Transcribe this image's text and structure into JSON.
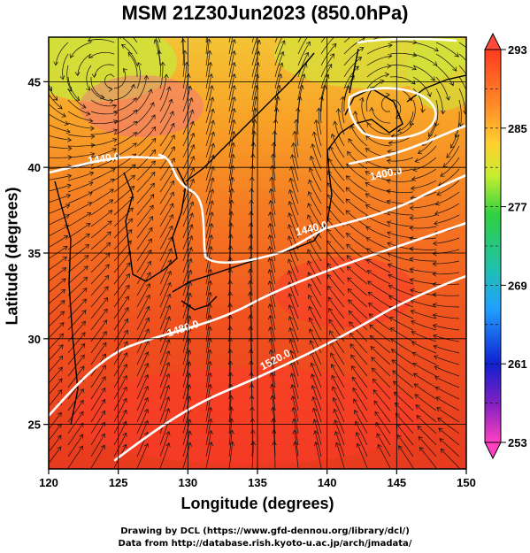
{
  "title": "MSM 21Z30Jun2023 (850.0hPa)",
  "map": {
    "lon_range": [
      120,
      150
    ],
    "lat_range": [
      22.4,
      47.6
    ],
    "x_ticks": [
      "120",
      "125",
      "130",
      "135",
      "140",
      "145",
      "150"
    ],
    "y_ticks": [
      "25",
      "30",
      "35",
      "40",
      "45"
    ],
    "xlabel": "Longitude (degrees)",
    "ylabel": "Latitude  (degrees)",
    "grid": true,
    "field": "temperature (shaded) + streamlines + geopotential height contours (white)"
  },
  "colorbar": {
    "labels": [
      "293",
      "285",
      "277",
      "269",
      "261",
      "253"
    ],
    "min": 253,
    "max": 293,
    "colors": [
      "#ff0000",
      "#ff8800",
      "#ffff00",
      "#00cc00",
      "#00cccc",
      "#0000ff",
      "#ff00ff"
    ]
  },
  "contours": [
    {
      "label": "1440.0"
    },
    {
      "label": "1400.0"
    },
    {
      "label": "1440.0"
    },
    {
      "label": "1480.0"
    },
    {
      "label": "1520.0"
    }
  ],
  "credits": {
    "line1": "Drawing by DCL (https://www.gfd-dennou.org/library/dcl/)",
    "line2": "Data from http://database.rish.kyoto-u.ac.jp/arch/jmadata/"
  }
}
